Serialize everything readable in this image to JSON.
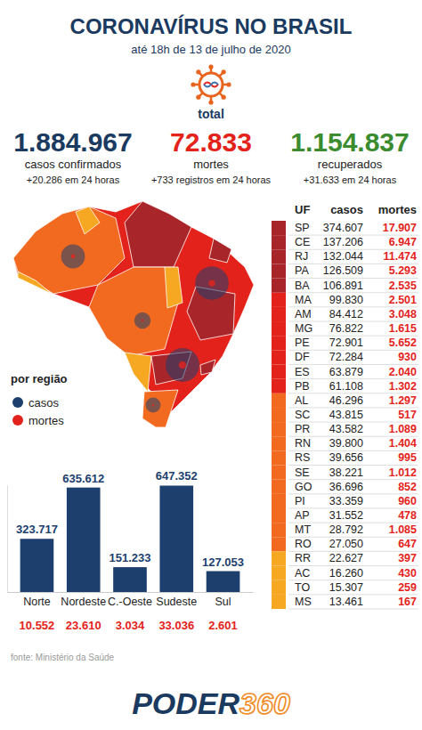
{
  "header": {
    "title": "CORONAVÍRUS NO BRASIL",
    "subtitle": "até 18h de 13 de julho de 2020"
  },
  "totals": {
    "label": "total",
    "items": [
      {
        "value": "1.884.967",
        "label": "casos confirmados",
        "delta": "+20.286 em 24 horas",
        "color": "#1b3a5f"
      },
      {
        "value": "72.833",
        "label": "mortes",
        "delta": "+733 registros em 24 horas",
        "color": "#e3231b"
      },
      {
        "value": "1.154.837",
        "label": "recuperados",
        "delta": "+31.633 em 24 horas",
        "color": "#3a8c2f"
      }
    ]
  },
  "map": {
    "legend_title": "por região"
  },
  "table": {
    "columns": [
      "UF",
      "casos",
      "mortes"
    ],
    "groups": [
      {
        "color": "#a8252a",
        "rows": [
          [
            "SP",
            "374.607",
            "17.907"
          ],
          [
            "CE",
            "137.206",
            "6.947"
          ],
          [
            "RJ",
            "132.044",
            "11.474"
          ],
          [
            "PA",
            "126.509",
            "5.293"
          ],
          [
            "BA",
            "106.891",
            "2.535"
          ]
        ]
      },
      {
        "color": "#e3231b",
        "rows": [
          [
            "MA",
            "99.830",
            "2.501"
          ],
          [
            "AM",
            "84.412",
            "3.048"
          ],
          [
            "MG",
            "76.822",
            "1.615"
          ],
          [
            "PE",
            "72.901",
            "5.652"
          ],
          [
            "DF",
            "72.284",
            "930"
          ],
          [
            "ES",
            "63.879",
            "2.040"
          ],
          [
            "PB",
            "61.108",
            "1.302"
          ]
        ]
      },
      {
        "color": "#f26a1f",
        "rows": [
          [
            "AL",
            "46.296",
            "1.297"
          ],
          [
            "SC",
            "43.815",
            "517"
          ],
          [
            "PR",
            "43.582",
            "1.089"
          ],
          [
            "RN",
            "39.800",
            "1.404"
          ],
          [
            "RS",
            "39.656",
            "995"
          ],
          [
            "SE",
            "38.221",
            "1.012"
          ],
          [
            "GO",
            "36.696",
            "852"
          ],
          [
            "PI",
            "33.359",
            "960"
          ],
          [
            "AP",
            "31.552",
            "478"
          ],
          [
            "MT",
            "28.792",
            "1.085"
          ],
          [
            "RO",
            "27.050",
            "647"
          ]
        ]
      },
      {
        "color": "#f7a823",
        "rows": [
          [
            "RR",
            "22.627",
            "397"
          ],
          [
            "AC",
            "16.260",
            "430"
          ],
          [
            "TO",
            "15.307",
            "259"
          ],
          [
            "MS",
            "13.461",
            "167"
          ]
        ]
      }
    ]
  },
  "chart_data": {
    "type": "bar",
    "categories": [
      "Norte",
      "Nordeste",
      "C.-Oeste",
      "Sudeste",
      "Sul"
    ],
    "series": [
      {
        "name": "casos",
        "color": "#1c3f6e",
        "values": [
          323717,
          635612,
          151233,
          647352,
          127053
        ],
        "value_labels": [
          "323.717",
          "635.612",
          "151.233",
          "647.352",
          "127.053"
        ]
      },
      {
        "name": "mortes",
        "color": "#e3231b",
        "values": [
          10552,
          23610,
          3034,
          33036,
          2601
        ],
        "value_labels": [
          "10.552",
          "23.610",
          "3.034",
          "33.036",
          "2.601"
        ]
      }
    ],
    "ylim": [
      0,
      650000
    ],
    "yticks": [],
    "data_labels": true,
    "tick_labels": "x",
    "legend": "left"
  },
  "footer": {
    "source": "fonte: Ministério da Saúde",
    "brand": [
      "PODER",
      "360"
    ]
  }
}
